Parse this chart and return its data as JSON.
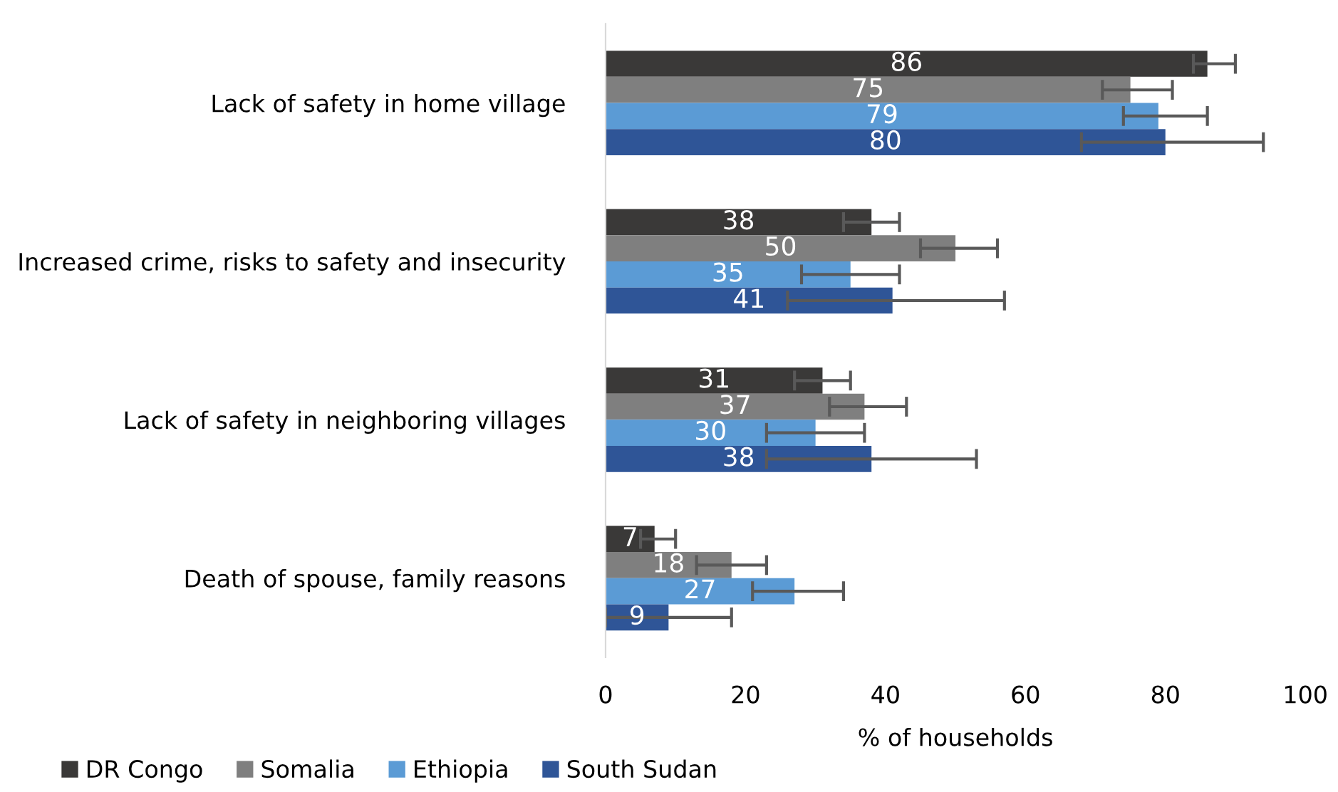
{
  "chart_data": {
    "type": "bar",
    "orientation": "horizontal",
    "xlabel": "% of households",
    "categories": [
      "Lack of safety in home village",
      "Increased crime, risks to safety and insecurity",
      "Lack of safety in neighboring villages",
      "Death of spouse, family reasons"
    ],
    "series": [
      {
        "name": "DR Congo",
        "color": "#3a3938",
        "values": [
          86,
          38,
          31,
          7
        ],
        "errors": [
          [
            84,
            90
          ],
          [
            34,
            42
          ],
          [
            27,
            35
          ],
          [
            5,
            10
          ]
        ]
      },
      {
        "name": "Somalia",
        "color": "#7f7f7f",
        "values": [
          75,
          50,
          37,
          18
        ],
        "errors": [
          [
            71,
            81
          ],
          [
            45,
            56
          ],
          [
            32,
            43
          ],
          [
            13,
            23
          ]
        ]
      },
      {
        "name": "Ethiopia",
        "color": "#5b9bd5",
        "values": [
          79,
          35,
          30,
          27
        ],
        "errors": [
          [
            74,
            86
          ],
          [
            28,
            42
          ],
          [
            23,
            37
          ],
          [
            21,
            34
          ]
        ]
      },
      {
        "name": "South Sudan",
        "color": "#2f5597",
        "values": [
          80,
          41,
          38,
          9
        ],
        "errors": [
          [
            68,
            94
          ],
          [
            26,
            57
          ],
          [
            23,
            53
          ],
          [
            0,
            18
          ]
        ]
      }
    ],
    "xlim": [
      0,
      100
    ],
    "xticks": [
      0,
      20,
      40,
      60,
      80,
      100
    ],
    "data_labels": true,
    "legend": "bottom left",
    "grid": false
  }
}
